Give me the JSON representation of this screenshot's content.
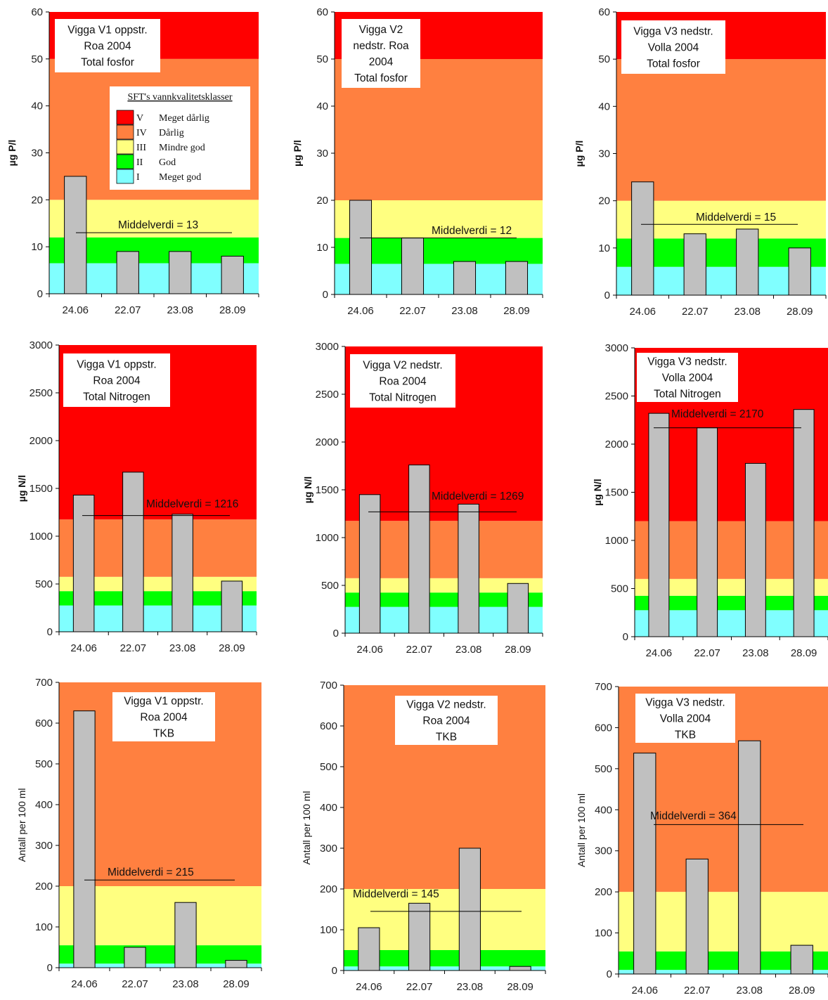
{
  "colors": {
    "V": "#ff0000",
    "IV": "#ff8040",
    "III": "#ffff80",
    "II": "#00ff00",
    "I": "#80ffff",
    "bar": "#c0c0c0"
  },
  "legend": {
    "title": "SFT's vannkvalitetsklasser",
    "items": [
      {
        "roman": "V",
        "label": "Meget dårlig",
        "color": "#ff0000"
      },
      {
        "roman": "IV",
        "label": "Dårlig",
        "color": "#ff8040"
      },
      {
        "roman": "III",
        "label": "Mindre god",
        "color": "#ffff80"
      },
      {
        "roman": "II",
        "label": "God",
        "color": "#00ff00"
      },
      {
        "roman": "I",
        "label": "Meget god",
        "color": "#80ffff"
      }
    ]
  },
  "chart_data": [
    {
      "type": "bar",
      "title": [
        "Vigga V1 oppstr.",
        "Roa 2004",
        "Total fosfor"
      ],
      "ylabel": "µg P/l",
      "categories": [
        "24.06",
        "22.07",
        "23.08",
        "28.09"
      ],
      "values": [
        25,
        9,
        9,
        8
      ],
      "ylim": [
        0,
        60
      ],
      "yticks": [
        0,
        10,
        20,
        30,
        40,
        50,
        60
      ],
      "bands": [
        6.5,
        12,
        20,
        50
      ],
      "mean": {
        "label": "Middelverdi = 13",
        "value": 13
      },
      "legend_shown": true
    },
    {
      "type": "bar",
      "title": [
        "Vigga V2",
        "nedstr. Roa",
        "2004",
        "Total fosfor"
      ],
      "ylabel": "µg P/l",
      "categories": [
        "24.06",
        "22.07",
        "23.08",
        "28.09"
      ],
      "values": [
        20,
        12,
        7,
        7
      ],
      "ylim": [
        0,
        60
      ],
      "yticks": [
        0,
        10,
        20,
        30,
        40,
        50,
        60
      ],
      "bands": [
        6.5,
        12,
        20,
        50
      ],
      "mean": {
        "label": "Middelverdi = 12",
        "value": 12
      }
    },
    {
      "type": "bar",
      "title": [
        "Vigga V3 nedstr.",
        "Volla 2004",
        "Total fosfor"
      ],
      "ylabel": "µg P/l",
      "categories": [
        "24.06",
        "22.07",
        "23.08",
        "28.09"
      ],
      "values": [
        24,
        13,
        14,
        10
      ],
      "ylim": [
        0,
        60
      ],
      "yticks": [
        0,
        10,
        20,
        30,
        40,
        50,
        60
      ],
      "bands": [
        6,
        12,
        20,
        50
      ],
      "mean": {
        "label": "Middelverdi = 15",
        "value": 15
      }
    },
    {
      "type": "bar",
      "title": [
        "Vigga V1 oppstr.",
        "Roa 2004",
        "Total Nitrogen"
      ],
      "ylabel": "µg N/l",
      "categories": [
        "24.06",
        "22.07",
        "23.08",
        "28.09"
      ],
      "values": [
        1430,
        1670,
        1230,
        530
      ],
      "ylim": [
        0,
        3000
      ],
      "yticks": [
        0,
        500,
        1000,
        1500,
        2000,
        2500,
        3000
      ],
      "bands": [
        275,
        425,
        575,
        1175
      ],
      "mean": {
        "label": "Middelverdi = 1216",
        "value": 1216
      }
    },
    {
      "type": "bar",
      "title": [
        "Vigga V2 nedstr.",
        "Roa 2004",
        "Total Nitrogen"
      ],
      "ylabel": "µg N/l",
      "categories": [
        "24.06",
        "22.07",
        "23.08",
        "28.09"
      ],
      "values": [
        1450,
        1760,
        1350,
        520
      ],
      "ylim": [
        0,
        3000
      ],
      "yticks": [
        0,
        500,
        1000,
        1500,
        2000,
        2500,
        3000
      ],
      "bands": [
        275,
        425,
        575,
        1175
      ],
      "mean": {
        "label": "Middelverdi = 1269",
        "value": 1269
      }
    },
    {
      "type": "bar",
      "title": [
        "Vigga V3 nedstr.",
        "Volla 2004",
        "Total Nitrogen"
      ],
      "ylabel": "µg N/l",
      "categories": [
        "24.06",
        "22.07",
        "23.08",
        "28.09"
      ],
      "values": [
        2320,
        2170,
        1800,
        2360
      ],
      "ylim": [
        0,
        3000
      ],
      "yticks": [
        0,
        500,
        1000,
        1500,
        2000,
        2500,
        3000
      ],
      "bands": [
        275,
        425,
        600,
        1200
      ],
      "mean": {
        "label": "Middelverdi = 2170",
        "value": 2170
      }
    },
    {
      "type": "bar",
      "title": [
        "Vigga V1 oppstr.",
        "Roa 2004",
        "TKB"
      ],
      "ylabel": "Antall per 100 ml",
      "categories": [
        "24.06",
        "22.07",
        "23.08",
        "28.09"
      ],
      "values": [
        630,
        50,
        160,
        18
      ],
      "ylim": [
        0,
        700
      ],
      "yticks": [
        0,
        100,
        200,
        300,
        400,
        500,
        600,
        700
      ],
      "bands": [
        10,
        55,
        200
      ],
      "mean": {
        "label": "Middelverdi = 215",
        "value": 215
      }
    },
    {
      "type": "bar",
      "title": [
        "Vigga V2 nedstr.",
        "Roa 2004",
        "TKB"
      ],
      "ylabel": "Antall per 100 ml",
      "categories": [
        "24.06",
        "22.07",
        "23.08",
        "28.09"
      ],
      "values": [
        105,
        165,
        300,
        10
      ],
      "ylim": [
        0,
        700
      ],
      "yticks": [
        0,
        100,
        200,
        300,
        400,
        500,
        600,
        700
      ],
      "bands": [
        10,
        50,
        200
      ],
      "mean": {
        "label": "Middelverdi = 145",
        "value": 145
      }
    },
    {
      "type": "bar",
      "title": [
        "Vigga V3 nedstr.",
        "Volla 2004",
        "TKB"
      ],
      "ylabel": "Antall per 100 ml",
      "categories": [
        "24.06",
        "22.07",
        "23.08",
        "28.09"
      ],
      "values": [
        538,
        280,
        568,
        70
      ],
      "ylim": [
        0,
        700
      ],
      "yticks": [
        0,
        100,
        200,
        300,
        400,
        500,
        600,
        700
      ],
      "bands": [
        10,
        55,
        200
      ],
      "mean": {
        "label": "Middelverdi = 364",
        "value": 364
      }
    }
  ]
}
